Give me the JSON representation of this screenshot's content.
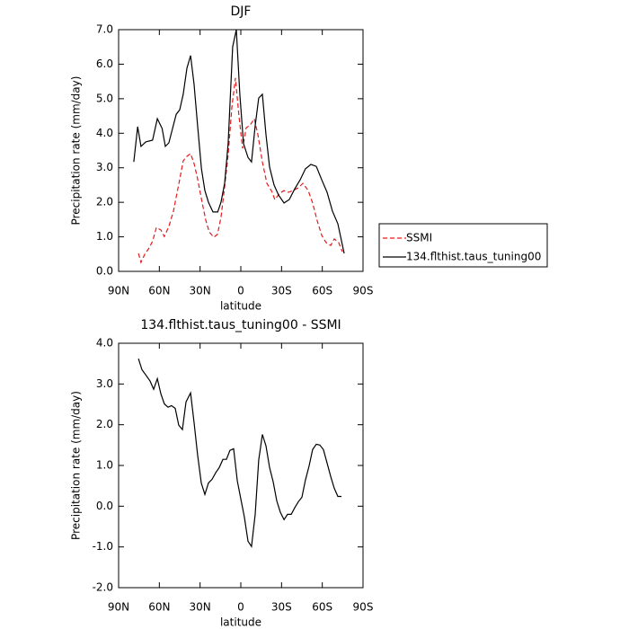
{
  "chart_data": [
    {
      "type": "line",
      "title": "DJF",
      "x_label": "latitude",
      "y_label": "Precipitation rate (mm/day)",
      "xlim": [
        90,
        -90
      ],
      "xticks": [
        {
          "value": 90,
          "label": "90N"
        },
        {
          "value": 60,
          "label": "60N"
        },
        {
          "value": 30,
          "label": "30N"
        },
        0,
        {
          "value": -30,
          "label": "30S"
        },
        {
          "value": -60,
          "label": "60S"
        },
        {
          "value": -90,
          "label": "90S"
        }
      ],
      "ylim": [
        0,
        7
      ],
      "yticks": [
        {
          "value": 0,
          "label": "0.0"
        },
        {
          "value": 1,
          "label": "1.0"
        },
        {
          "value": 2,
          "label": "2.0"
        },
        {
          "value": 3,
          "label": "3.0"
        },
        {
          "value": 4,
          "label": "4.0"
        },
        {
          "value": 5,
          "label": "5.0"
        },
        {
          "value": 6,
          "label": "6.0"
        },
        {
          "value": 7,
          "label": "7.0"
        }
      ],
      "legend": "right",
      "series": [
        {
          "name": "SSMI",
          "color": "#e41a1c",
          "style": "dashed",
          "x": [
            75.4,
            73.5,
            70.8,
            67.5,
            64.9,
            62.2,
            58.9,
            56.3,
            53,
            49.6,
            45.7,
            42.4,
            39.7,
            37,
            34.4,
            31.8,
            28.5,
            25.8,
            23.2,
            19.9,
            17.2,
            14.6,
            11.9,
            9.3,
            6.6,
            4,
            1.3,
            -1.3,
            -4,
            -6.6,
            -9.9,
            -12.6,
            -15.9,
            -19.2,
            -22.5,
            -25.1,
            -28.5,
            -31.8,
            -35.1,
            -38.4,
            -42.4,
            -45.7,
            -49.6,
            -52.9,
            -56.3,
            -59.6,
            -62.9,
            -66.2,
            -68.8,
            -72.1,
            -74.8
          ],
          "values": [
            0.52,
            0.26,
            0.49,
            0.68,
            0.88,
            1.27,
            1.2,
            1.01,
            1.3,
            1.74,
            2.52,
            3.2,
            3.33,
            3.41,
            3.12,
            2.68,
            2.0,
            1.48,
            1.14,
            0.99,
            1.07,
            1.56,
            2.45,
            3.38,
            4.74,
            5.6,
            4.48,
            3.56,
            4.16,
            4.22,
            4.42,
            3.96,
            3.17,
            2.55,
            2.34,
            2.08,
            2.26,
            2.34,
            2.29,
            2.34,
            2.42,
            2.55,
            2.34,
            1.98,
            1.46,
            1.04,
            0.83,
            0.75,
            0.94,
            0.83,
            0.57
          ]
        },
        {
          "name": "134.flthist.taus_tuning00",
          "color": "#000000",
          "style": "solid",
          "x": [
            78.8,
            76,
            73.5,
            70,
            65,
            61.5,
            58,
            55.6,
            53,
            47.6,
            45,
            42.4,
            39.7,
            37,
            34.4,
            31.8,
            29,
            26.5,
            23.8,
            20.5,
            17,
            14.6,
            11.9,
            9.3,
            6,
            3.3,
            0.7,
            -2,
            -5.3,
            -7.9,
            -10.6,
            -13.2,
            -15.9,
            -18.5,
            -21.2,
            -24.5,
            -27.8,
            -31.8,
            -35.7,
            -39.7,
            -43.7,
            -47.6,
            -51.6,
            -55.6,
            -59.6,
            -63.5,
            -67.5,
            -71.5,
            -76.1
          ],
          "values": [
            3.17,
            4.19,
            3.62,
            3.75,
            3.8,
            4.42,
            4.14,
            3.62,
            3.72,
            4.55,
            4.68,
            5.13,
            5.88,
            6.25,
            5.41,
            4.22,
            2.97,
            2.34,
            2.0,
            1.72,
            1.72,
            2.0,
            2.55,
            3.7,
            6.5,
            7.0,
            5.13,
            3.7,
            3.3,
            3.17,
            4.22,
            5.02,
            5.13,
            3.96,
            3.02,
            2.5,
            2.21,
            1.98,
            2.08,
            2.39,
            2.65,
            2.97,
            3.1,
            3.04,
            2.65,
            2.29,
            1.74,
            1.38,
            0.52
          ]
        }
      ]
    },
    {
      "type": "line",
      "title": "134.flthist.taus_tuning00 - SSMI",
      "x_label": "latitude",
      "y_label": "Precipitation rate (mm/day)",
      "xlim": [
        90,
        -90
      ],
      "xticks": [
        {
          "value": 90,
          "label": "90N"
        },
        {
          "value": 60,
          "label": "60N"
        },
        {
          "value": 30,
          "label": "30N"
        },
        0,
        {
          "value": -30,
          "label": "30S"
        },
        {
          "value": -60,
          "label": "60S"
        },
        {
          "value": -90,
          "label": "90S"
        }
      ],
      "ylim": [
        -2,
        4
      ],
      "yticks": [
        {
          "value": -2,
          "label": "-2.0"
        },
        {
          "value": -1,
          "label": "-1.0"
        },
        {
          "value": 0,
          "label": "0.0"
        },
        {
          "value": 1,
          "label": "1.0"
        },
        {
          "value": 2,
          "label": "2.0"
        },
        {
          "value": 3,
          "label": "3.0"
        },
        {
          "value": 4,
          "label": "4.0"
        }
      ],
      "series": [
        {
          "color": "#000000",
          "style": "solid",
          "x": [
            75.4,
            72.8,
            69.5,
            66.8,
            64.2,
            61.5,
            58.9,
            56.3,
            53.6,
            51,
            48.3,
            45.7,
            43,
            40.4,
            37,
            34.4,
            31.8,
            29.1,
            26.5,
            23.8,
            21.2,
            18.5,
            15.9,
            13.2,
            10.6,
            8,
            5.3,
            2.6,
            0,
            -2.6,
            -5.3,
            -7.9,
            -10.6,
            -13.2,
            -15.9,
            -18.5,
            -21.2,
            -23.8,
            -26.5,
            -29.1,
            -31.8,
            -34.4,
            -37.1,
            -39.7,
            -42.4,
            -45,
            -47.6,
            -50.3,
            -52.9,
            -55.6,
            -58.2,
            -60.8,
            -63.5,
            -66.2,
            -68.8,
            -71.5,
            -74.1
          ],
          "values": [
            3.62,
            3.35,
            3.2,
            3.07,
            2.87,
            3.13,
            2.76,
            2.51,
            2.43,
            2.47,
            2.4,
            1.99,
            1.88,
            2.56,
            2.78,
            2.05,
            1.26,
            0.57,
            0.29,
            0.57,
            0.66,
            0.82,
            0.95,
            1.15,
            1.15,
            1.37,
            1.41,
            0.62,
            0.18,
            -0.26,
            -0.86,
            -0.99,
            -0.2,
            1.13,
            1.76,
            1.48,
            0.95,
            0.6,
            0.13,
            -0.15,
            -0.33,
            -0.2,
            -0.2,
            -0.04,
            0.11,
            0.22,
            0.64,
            0.99,
            1.39,
            1.52,
            1.5,
            1.39,
            1.06,
            0.73,
            0.44,
            0.24,
            0.24
          ]
        }
      ]
    }
  ]
}
